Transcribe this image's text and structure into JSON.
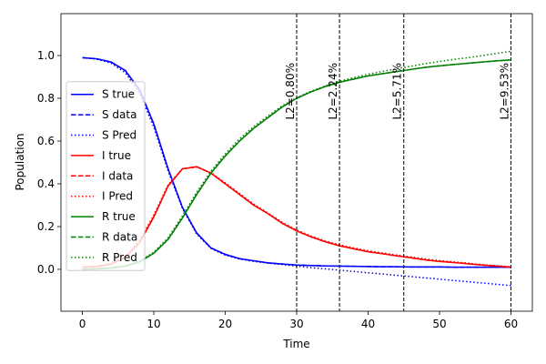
{
  "chart_data": {
    "type": "line",
    "xlabel": "Time",
    "ylabel": "Population",
    "x": [
      0,
      2,
      4,
      6,
      8,
      10,
      12,
      14,
      16,
      18,
      20,
      22,
      24,
      26,
      28,
      30,
      32,
      34,
      36,
      38,
      40,
      42,
      44,
      46,
      48,
      50,
      52,
      54,
      56,
      58,
      60
    ],
    "series": [
      {
        "name": "S true",
        "color": "#0000ff",
        "linestyle": "solid",
        "values": [
          0.99,
          0.985,
          0.97,
          0.93,
          0.84,
          0.68,
          0.47,
          0.29,
          0.17,
          0.1,
          0.07,
          0.05,
          0.04,
          0.03,
          0.025,
          0.02,
          0.018,
          0.016,
          0.015,
          0.014,
          0.013,
          0.012,
          0.012,
          0.011,
          0.011,
          0.011,
          0.01,
          0.01,
          0.01,
          0.01,
          0.01
        ]
      },
      {
        "name": "S data",
        "color": "#0000ff",
        "linestyle": "dashed",
        "values": [
          0.99,
          0.985,
          0.97,
          0.93,
          0.84,
          0.68,
          0.47,
          0.29,
          0.17,
          0.1,
          0.07,
          0.05,
          0.04,
          0.03,
          0.025,
          0.02,
          0.018,
          0.016,
          0.015,
          0.014,
          0.013,
          0.012,
          0.012,
          0.011,
          0.011,
          0.011,
          0.01,
          0.01,
          0.01,
          0.01,
          0.01
        ]
      },
      {
        "name": "S Pred",
        "color": "#0000ff",
        "linestyle": "dotted",
        "values": [
          0.99,
          0.983,
          0.965,
          0.92,
          0.825,
          0.665,
          0.46,
          0.285,
          0.165,
          0.098,
          0.066,
          0.048,
          0.037,
          0.029,
          0.022,
          0.015,
          0.008,
          0.002,
          -0.004,
          -0.01,
          -0.016,
          -0.022,
          -0.028,
          -0.034,
          -0.04,
          -0.046,
          -0.052,
          -0.058,
          -0.064,
          -0.07,
          -0.076
        ]
      },
      {
        "name": "I true",
        "color": "#ff0000",
        "linestyle": "solid",
        "values": [
          0.01,
          0.013,
          0.024,
          0.055,
          0.125,
          0.245,
          0.39,
          0.47,
          0.48,
          0.45,
          0.4,
          0.35,
          0.3,
          0.26,
          0.215,
          0.18,
          0.152,
          0.129,
          0.11,
          0.096,
          0.082,
          0.073,
          0.063,
          0.054,
          0.044,
          0.037,
          0.032,
          0.026,
          0.02,
          0.015,
          0.01
        ]
      },
      {
        "name": "I data",
        "color": "#ff0000",
        "linestyle": "dashed",
        "values": [
          0.01,
          0.013,
          0.024,
          0.055,
          0.125,
          0.245,
          0.39,
          0.47,
          0.48,
          0.45,
          0.4,
          0.35,
          0.3,
          0.26,
          0.215,
          0.18,
          0.152,
          0.129,
          0.11,
          0.096,
          0.082,
          0.073,
          0.063,
          0.054,
          0.044,
          0.037,
          0.032,
          0.026,
          0.02,
          0.015,
          0.01
        ]
      },
      {
        "name": "I Pred",
        "color": "#ff0000",
        "linestyle": "dotted",
        "values": [
          0.01,
          0.014,
          0.026,
          0.06,
          0.135,
          0.255,
          0.395,
          0.47,
          0.478,
          0.452,
          0.405,
          0.355,
          0.305,
          0.263,
          0.22,
          0.184,
          0.156,
          0.133,
          0.115,
          0.1,
          0.087,
          0.077,
          0.067,
          0.058,
          0.049,
          0.041,
          0.035,
          0.029,
          0.022,
          0.017,
          0.012
        ]
      },
      {
        "name": "R true",
        "color": "#008000",
        "linestyle": "solid",
        "values": [
          0,
          0.002,
          0.006,
          0.015,
          0.035,
          0.075,
          0.14,
          0.24,
          0.35,
          0.45,
          0.53,
          0.6,
          0.66,
          0.71,
          0.76,
          0.8,
          0.83,
          0.855,
          0.875,
          0.89,
          0.905,
          0.915,
          0.925,
          0.935,
          0.945,
          0.952,
          0.958,
          0.964,
          0.97,
          0.975,
          0.98
        ]
      },
      {
        "name": "R data",
        "color": "#008000",
        "linestyle": "dashed",
        "values": [
          0,
          0.002,
          0.006,
          0.015,
          0.035,
          0.075,
          0.14,
          0.24,
          0.35,
          0.45,
          0.53,
          0.6,
          0.66,
          0.71,
          0.76,
          0.8,
          0.83,
          0.855,
          0.875,
          0.89,
          0.905,
          0.915,
          0.925,
          0.935,
          0.945,
          0.952,
          0.958,
          0.964,
          0.97,
          0.975,
          0.98
        ]
      },
      {
        "name": "R Pred",
        "color": "#008000",
        "linestyle": "dotted",
        "values": [
          0,
          0.002,
          0.007,
          0.017,
          0.038,
          0.08,
          0.148,
          0.25,
          0.36,
          0.46,
          0.54,
          0.61,
          0.668,
          0.718,
          0.765,
          0.803,
          0.833,
          0.858,
          0.88,
          0.897,
          0.913,
          0.926,
          0.938,
          0.95,
          0.962,
          0.972,
          0.982,
          0.99,
          1.0,
          1.01,
          1.02
        ]
      }
    ],
    "annotations": [
      {
        "x": 30,
        "label": "L2=0.80%"
      },
      {
        "x": 36,
        "label": "L2=2.24%"
      },
      {
        "x": 45,
        "label": "L2=5.71%"
      },
      {
        "x": 60,
        "label": "L2=9.53%"
      }
    ],
    "xlim": [
      -3,
      63
    ],
    "xticks": [
      0,
      10,
      20,
      30,
      40,
      50,
      60
    ],
    "ylim": [
      -0.196,
      1.196
    ],
    "yticks": [
      {
        "value": 0,
        "label": "0.0"
      },
      0.2,
      0.4,
      0.6,
      0.8,
      {
        "value": 1,
        "label": "1.0"
      }
    ],
    "grid": false,
    "legend": "center left"
  }
}
